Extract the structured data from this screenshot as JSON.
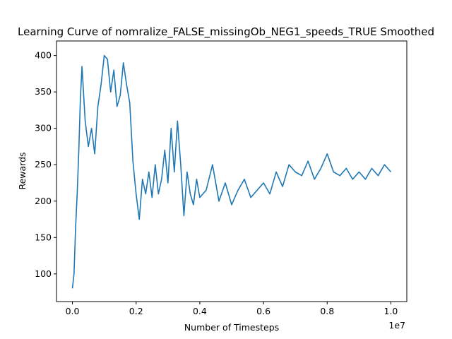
{
  "chart_data": {
    "type": "line",
    "title": "Learning Curve of nomralize_FALSE_missingOb_NEG1_speeds_TRUE Smoothed",
    "xlabel": "Number of Timesteps",
    "ylabel": "Rewards",
    "x_offset_label": "1e7",
    "xlim": [
      -0.05,
      1.05
    ],
    "ylim": [
      62,
      420
    ],
    "x_ticks": [
      0.0,
      0.2,
      0.4,
      0.6,
      0.8,
      1.0
    ],
    "x_tick_labels": [
      "0.0",
      "0.2",
      "0.4",
      "0.6",
      "0.8",
      "1.0"
    ],
    "y_ticks": [
      100,
      150,
      200,
      250,
      300,
      350,
      400
    ],
    "y_tick_labels": [
      "100",
      "150",
      "200",
      "250",
      "300",
      "350",
      "400"
    ],
    "grid": false,
    "legend": "none",
    "series": [
      {
        "color": "#1f77b4",
        "x": [
          0.0,
          0.005,
          0.01,
          0.015,
          0.02,
          0.025,
          0.03,
          0.04,
          0.05,
          0.06,
          0.07,
          0.08,
          0.09,
          0.1,
          0.11,
          0.12,
          0.13,
          0.14,
          0.15,
          0.16,
          0.17,
          0.18,
          0.19,
          0.2,
          0.21,
          0.22,
          0.23,
          0.24,
          0.25,
          0.26,
          0.27,
          0.28,
          0.29,
          0.3,
          0.31,
          0.32,
          0.33,
          0.34,
          0.35,
          0.36,
          0.37,
          0.38,
          0.39,
          0.4,
          0.42,
          0.44,
          0.46,
          0.48,
          0.5,
          0.52,
          0.54,
          0.56,
          0.58,
          0.6,
          0.62,
          0.64,
          0.66,
          0.68,
          0.7,
          0.72,
          0.74,
          0.76,
          0.78,
          0.8,
          0.82,
          0.84,
          0.86,
          0.88,
          0.9,
          0.92,
          0.94,
          0.96,
          0.98,
          1.0
        ],
        "y": [
          80,
          100,
          165,
          210,
          270,
          340,
          385,
          310,
          275,
          300,
          265,
          330,
          360,
          400,
          395,
          350,
          380,
          330,
          345,
          390,
          360,
          335,
          255,
          210,
          175,
          230,
          210,
          240,
          205,
          250,
          210,
          230,
          270,
          225,
          300,
          240,
          310,
          250,
          180,
          240,
          210,
          195,
          230,
          205,
          215,
          250,
          200,
          225,
          195,
          215,
          230,
          205,
          215,
          225,
          210,
          240,
          220,
          250,
          240,
          235,
          255,
          230,
          245,
          265,
          240,
          235,
          245,
          230,
          240,
          230,
          245,
          235,
          250,
          240
        ]
      }
    ]
  }
}
